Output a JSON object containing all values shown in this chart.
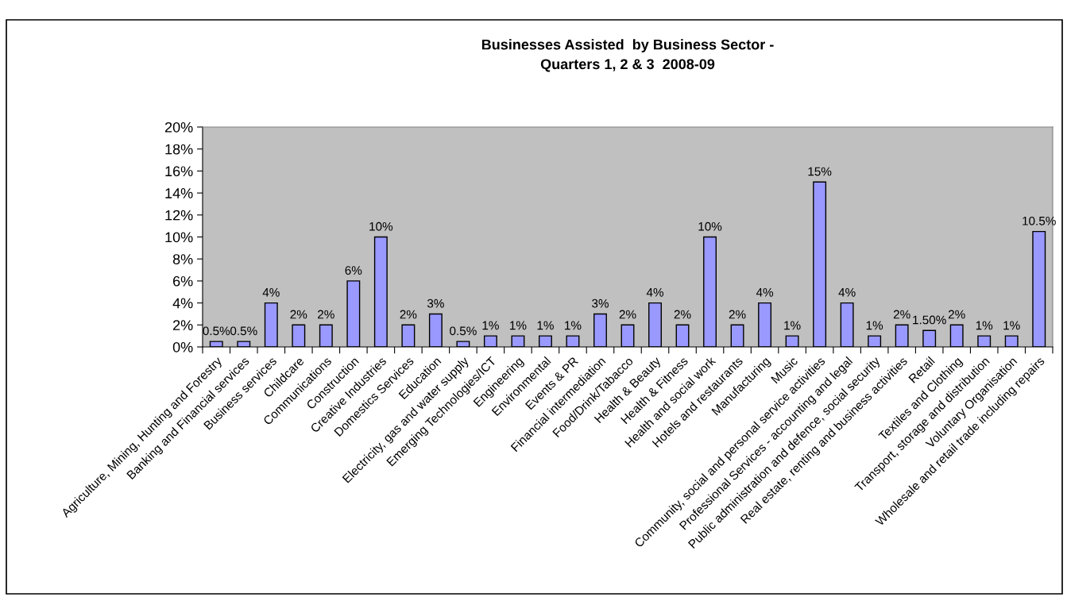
{
  "chart_data": {
    "type": "bar",
    "title": "Businesses Assisted  by Business Sector -\nQuarters 1, 2 & 3  2008-09",
    "categories": [
      "Agriculture, Mining, Hunting and Forestry",
      "Banking and Financial services",
      "Business services",
      "Childcare",
      "Communications",
      "Construction",
      "Creative Industries",
      "Domestics Services",
      "Education",
      "Electricity, gas and water supply",
      "Emerging Technologies/ICT",
      "Engineering",
      "Environmental",
      "Events & PR",
      "Financial intermediation",
      "Food/Drink/Tabacco",
      "Health & Beauty",
      "Health & Fitness",
      "Health and social work",
      "Hotels and restaurants",
      "Manufacturing",
      "Music",
      "Community, social and personal service activities",
      "Professional Services - accounting and legal",
      "Public administration and defence, social security",
      "Real estate, renting and business activities",
      "Retail",
      "Textiles and Clothing",
      "Transport, storage and distribution",
      "Voluntary Organisation",
      "Wholesale and retail trade including repairs"
    ],
    "values": [
      0.5,
      0.5,
      4,
      2,
      2,
      6,
      10,
      2,
      3,
      0.5,
      1,
      1,
      1,
      1,
      3,
      2,
      4,
      2,
      10,
      2,
      4,
      1,
      15,
      4,
      1,
      2,
      1.5,
      2,
      1,
      1,
      10.5
    ],
    "value_labels": [
      "0.5%",
      "0.5%",
      "4%",
      "2%",
      "2%",
      "6%",
      "10%",
      "2%",
      "3%",
      "0.5%",
      "1%",
      "1%",
      "1%",
      "1%",
      "3%",
      "2%",
      "4%",
      "2%",
      "10%",
      "2%",
      "4%",
      "1%",
      "15%",
      "4%",
      "1%",
      "2%",
      "1.50%",
      "2%",
      "1%",
      "1%",
      "10.5%"
    ],
    "color": "#9999ff",
    "ylim": [
      0,
      20
    ],
    "yticks": [
      {
        "value": 0,
        "label": "0%"
      },
      {
        "value": 2,
        "label": "2%"
      },
      {
        "value": 4,
        "label": "4%"
      },
      {
        "value": 6,
        "label": "6%"
      },
      {
        "value": 8,
        "label": "8%"
      },
      {
        "value": 10,
        "label": "10%"
      },
      {
        "value": 12,
        "label": "12%"
      },
      {
        "value": 14,
        "label": "14%"
      },
      {
        "value": 16,
        "label": "16%"
      },
      {
        "value": 18,
        "label": "18%"
      },
      {
        "value": 20,
        "label": "20%"
      }
    ],
    "grid": false,
    "legend": false
  }
}
